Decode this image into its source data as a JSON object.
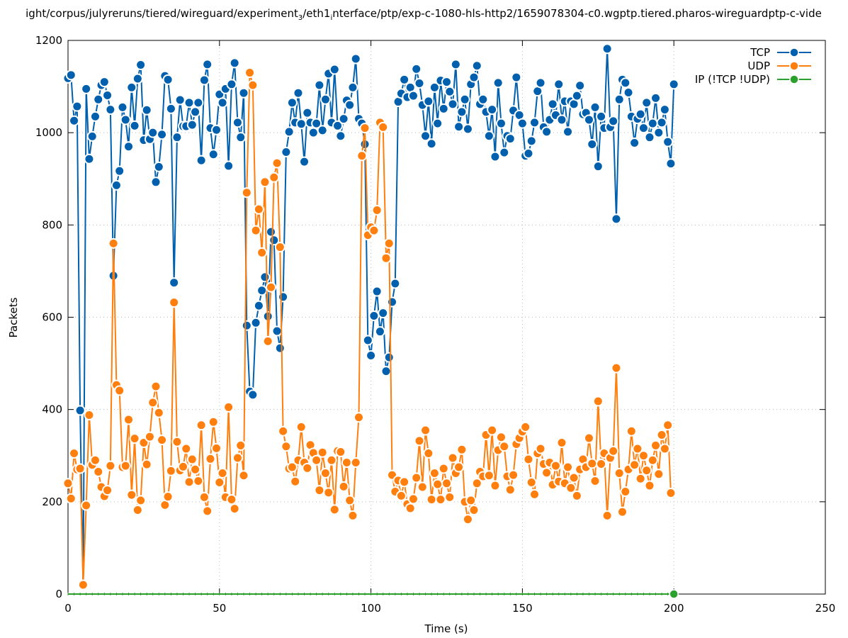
{
  "chart_data": {
    "type": "line",
    "title": "ight/corpus/julyreruns/tiered/wireguard/experiment_3/eth1_interface/ptp/exp-c-1080-hls-http2/1659078304-c0.wgptp.tiered.pharos-wireguardptp-c-vide",
    "title_parts": [
      "ight/corpus/julyreruns/tiered/wireguard/experiment",
      "3",
      "/eth1",
      "i",
      "nterface/ptp/exp-c-1080-hls-http2/1659078304-c0.wgptp.tiered.pharos-wireguardptp-c-vide"
    ],
    "xlabel": "Time (s)",
    "ylabel": "Packets",
    "xlim": [
      0,
      250
    ],
    "ylim": [
      0,
      1200
    ],
    "xticks": [
      "0",
      "50",
      "100",
      "150",
      "200",
      "250"
    ],
    "yticks": [
      "0",
      "200",
      "400",
      "600",
      "800",
      "1000",
      "1200"
    ],
    "grid": true,
    "legend_position": "top-right",
    "x_start": 0,
    "x_step": 1,
    "series": [
      {
        "name": "TCP",
        "color": "#0060ad",
        "values": [
          1118,
          1125,
          1026,
          1057,
          398,
          20,
          1095,
          943,
          992,
          1035,
          1072,
          1103,
          1110,
          1081,
          1050,
          690,
          886,
          917,
          1055,
          1028,
          970,
          1098,
          1015,
          1117,
          1147,
          984,
          1049,
          986,
          1000,
          893,
          926,
          996,
          1123,
          1115,
          1052,
          675,
          990,
          1071,
          1014,
          1014,
          1065,
          1017,
          1045,
          1065,
          940,
          1114,
          1148,
          1010,
          953,
          1006,
          1083,
          1065,
          1095,
          928,
          1105,
          1151,
          1022,
          990,
          1086,
          582,
          439,
          432,
          588,
          625,
          658,
          687,
          602,
          785,
          767,
          570,
          533,
          644,
          958,
          1002,
          1065,
          1022,
          1086,
          1019,
          937,
          1043,
          1022,
          1000,
          1020,
          1103,
          1005,
          1072,
          1128,
          1022,
          1137,
          1015,
          993,
          1030,
          1070,
          1060,
          1098,
          1160,
          1030,
          1020,
          975,
          550,
          517,
          603,
          656,
          569,
          609,
          483,
          513,
          633,
          673,
          1067,
          1085,
          1115,
          1077,
          1098,
          1080,
          1138,
          1107,
          1060,
          993,
          1068,
          976,
          1098,
          1020,
          1113,
          1052,
          1110,
          1089,
          1062,
          1148,
          1013,
          1045,
          1072,
          1008,
          1105,
          1120,
          1145,
          1062,
          1072,
          1045,
          993,
          1050,
          948,
          1108,
          1020,
          957,
          993,
          987,
          1048,
          1120,
          1038,
          1020,
          950,
          955,
          982,
          1022,
          1090,
          1108,
          1012,
          1002,
          1028,
          1062,
          1038,
          1105,
          1028,
          1068,
          1002,
          1068,
          1062,
          1080,
          1102,
          1040,
          1043,
          1028,
          975,
          1055,
          927,
          1035,
          1010,
          1182,
          1012,
          1025,
          813,
          1072,
          1115,
          1108,
          1087,
          1035,
          978,
          1030,
          1040,
          1010,
          1065,
          990,
          1020,
          1075,
          1000,
          1022,
          1050,
          980,
          933,
          1105
        ]
      },
      {
        "name": "UDP",
        "color": "#ff7f0e",
        "values": [
          240,
          207,
          305,
          270,
          272,
          20,
          192,
          388,
          280,
          290,
          265,
          232,
          212,
          225,
          278,
          760,
          453,
          441,
          275,
          278,
          378,
          215,
          337,
          182,
          203,
          328,
          281,
          341,
          415,
          450,
          393,
          334,
          193,
          211,
          267,
          632,
          330,
          268,
          276,
          315,
          243,
          292,
          270,
          245,
          366,
          210,
          180,
          293,
          373,
          316,
          242,
          262,
          210,
          405,
          205,
          185,
          295,
          322,
          257,
          870,
          1130,
          1103,
          788,
          834,
          740,
          893,
          548,
          665,
          903,
          934,
          752,
          353,
          320,
          272,
          275,
          244,
          290,
          362,
          285,
          273,
          323,
          306,
          290,
          225,
          307,
          262,
          220,
          290,
          183,
          310,
          308,
          233,
          285,
          203,
          170,
          285,
          383,
          950,
          1010,
          778,
          795,
          788,
          832,
          1022,
          1012,
          728,
          760,
          258,
          222,
          246,
          213,
          243,
          195,
          186,
          206,
          252,
          332,
          232,
          355,
          305,
          205,
          262,
          238,
          205,
          272,
          240,
          210,
          295,
          262,
          275,
          313,
          200,
          162,
          203,
          182,
          240,
          265,
          255,
          345,
          257,
          355,
          235,
          312,
          340,
          320,
          255,
          226,
          258,
          325,
          338,
          352,
          362,
          292,
          242,
          216,
          305,
          315,
          282,
          263,
          285,
          237,
          278,
          244,
          328,
          240,
          275,
          230,
          252,
          213,
          270,
          292,
          275,
          338,
          283,
          245,
          418,
          282,
          305,
          170,
          295,
          310,
          490,
          262,
          178,
          222,
          270,
          353,
          280,
          315,
          250,
          300,
          268,
          235,
          290,
          322,
          260,
          345,
          315,
          366,
          219
        ]
      },
      {
        "name": "IP (!TCP  !UDP)",
        "color": "#2ca02c",
        "values": [
          0
        ],
        "last_x": 200,
        "constant_value": 0
      }
    ]
  }
}
